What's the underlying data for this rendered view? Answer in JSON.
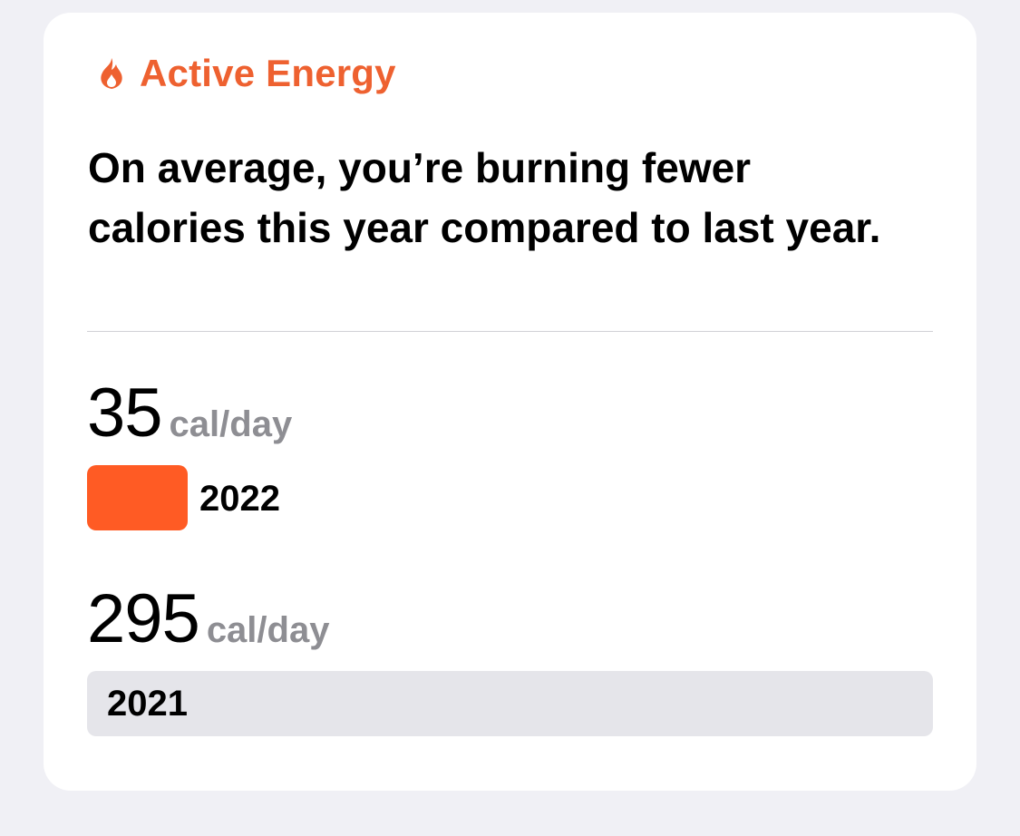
{
  "card": {
    "title": "Active Energy",
    "title_icon": "flame-icon",
    "accent_color": "#EE6130",
    "message": "On average, you’re burning fewer calories this year compared to last year."
  },
  "comparison": [
    {
      "value": "35",
      "unit": "cal/day",
      "year": "2022",
      "bar_color": "#FF5B24",
      "bar_fraction": 0.119
    },
    {
      "value": "295",
      "unit": "cal/day",
      "year": "2021",
      "bar_color": "#E5E5EA",
      "bar_fraction": 1.0
    }
  ]
}
